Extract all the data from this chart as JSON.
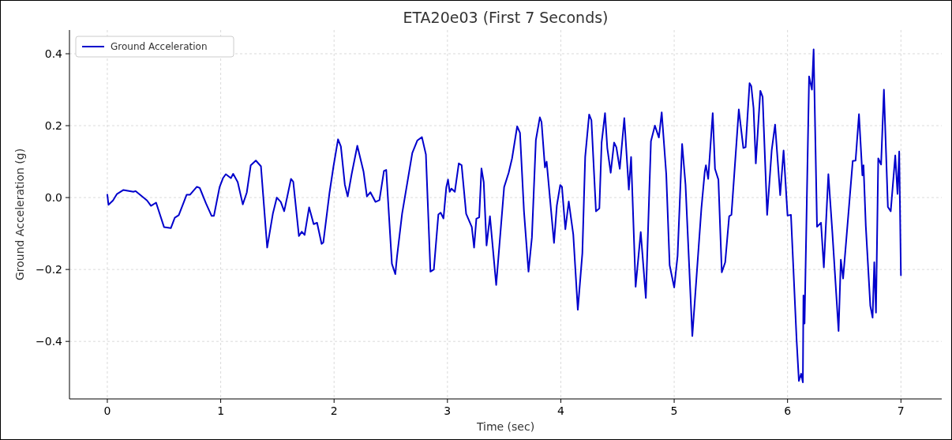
{
  "chart_data": {
    "type": "line",
    "title": "ETA20e03 (First 7 Seconds)",
    "xlabel": "Time (sec)",
    "ylabel": "Ground Acceleration (g)",
    "xlim": [
      -0.334,
      7.36
    ],
    "ylim": [
      -0.56,
      0.466
    ],
    "xticks": [
      0,
      1,
      2,
      3,
      4,
      5,
      6,
      7
    ],
    "yticks": [
      {
        "value": -0.4,
        "label": "−0.4"
      },
      {
        "value": -0.2,
        "label": "−0.2"
      },
      {
        "value": 0,
        "label": "0.0"
      },
      {
        "value": 0.2,
        "label": "0.2"
      },
      {
        "value": 0.4,
        "label": "0.4"
      }
    ],
    "grid": true,
    "legend": "top left",
    "line_style": "solid",
    "series": [
      {
        "name": "Ground Acceleration",
        "color": "#0000cc",
        "x": [
          0,
          0.01,
          0.05,
          0.085,
          0.14,
          0.23,
          0.25,
          0.35,
          0.385,
          0.43,
          0.5,
          0.56,
          0.595,
          0.63,
          0.7,
          0.73,
          0.79,
          0.815,
          0.87,
          0.92,
          0.94,
          0.99,
          1.02,
          1.045,
          1.09,
          1.11,
          1.15,
          1.195,
          1.23,
          1.265,
          1.31,
          1.355,
          1.41,
          1.46,
          1.495,
          1.53,
          1.56,
          1.62,
          1.64,
          1.69,
          1.715,
          1.74,
          1.78,
          1.82,
          1.85,
          1.89,
          1.905,
          1.96,
          1.995,
          2.035,
          2.06,
          2.095,
          2.12,
          2.155,
          2.205,
          2.26,
          2.29,
          2.32,
          2.365,
          2.4,
          2.44,
          2.46,
          2.51,
          2.54,
          2.555,
          2.6,
          2.69,
          2.735,
          2.775,
          2.81,
          2.85,
          2.88,
          2.92,
          2.94,
          2.965,
          2.99,
          3.005,
          3.02,
          3.035,
          3.065,
          3.1,
          3.125,
          3.165,
          3.215,
          3.235,
          3.255,
          3.28,
          3.3,
          3.32,
          3.345,
          3.375,
          3.43,
          3.5,
          3.54,
          3.57,
          3.615,
          3.64,
          3.675,
          3.715,
          3.745,
          3.78,
          3.815,
          3.83,
          3.86,
          3.875,
          3.94,
          3.965,
          3.995,
          4.01,
          4.04,
          4.07,
          4.11,
          4.15,
          4.19,
          4.215,
          4.25,
          4.27,
          4.31,
          4.34,
          4.36,
          4.39,
          4.41,
          4.44,
          4.47,
          4.49,
          4.52,
          4.56,
          4.6,
          4.62,
          4.66,
          4.705,
          4.75,
          4.795,
          4.83,
          4.865,
          4.89,
          4.93,
          4.96,
          5.0,
          5.03,
          5.07,
          5.1,
          5.16,
          5.24,
          5.27,
          5.28,
          5.3,
          5.34,
          5.36,
          5.39,
          5.42,
          5.45,
          5.485,
          5.505,
          5.57,
          5.61,
          5.63,
          5.665,
          5.68,
          5.7,
          5.72,
          5.76,
          5.78,
          5.82,
          5.86,
          5.89,
          5.935,
          5.965,
          6.0,
          6.03,
          6.08,
          6.1,
          6.12,
          6.135,
          6.14,
          6.15,
          6.19,
          6.215,
          6.23,
          6.26,
          6.295,
          6.32,
          6.36,
          6.395,
          6.45,
          6.47,
          6.49,
          6.575,
          6.6,
          6.63,
          6.66,
          6.67,
          6.69,
          6.73,
          6.75,
          6.765,
          6.78,
          6.8,
          6.825,
          6.85,
          6.885,
          6.91,
          6.95,
          6.97,
          6.985,
          7.0
        ],
        "values": [
          0.008,
          -0.02,
          -0.008,
          0.01,
          0.021,
          0.016,
          0.018,
          -0.008,
          -0.023,
          -0.014,
          -0.082,
          -0.085,
          -0.056,
          -0.049,
          0.008,
          0.008,
          0.03,
          0.027,
          -0.016,
          -0.051,
          -0.051,
          0.029,
          0.054,
          0.065,
          0.054,
          0.066,
          0.043,
          -0.019,
          0.014,
          0.09,
          0.103,
          0.087,
          -0.139,
          -0.045,
          0.0,
          -0.012,
          -0.038,
          0.052,
          0.044,
          -0.107,
          -0.095,
          -0.104,
          -0.027,
          -0.074,
          -0.07,
          -0.129,
          -0.125,
          0.014,
          0.087,
          0.162,
          0.142,
          0.036,
          0.003,
          0.065,
          0.144,
          0.072,
          0.003,
          0.015,
          -0.012,
          -0.007,
          0.074,
          0.077,
          -0.184,
          -0.213,
          -0.165,
          -0.045,
          0.124,
          0.159,
          0.168,
          0.12,
          -0.206,
          -0.2,
          -0.047,
          -0.042,
          -0.058,
          0.029,
          0.05,
          0.016,
          0.025,
          0.016,
          0.095,
          0.09,
          -0.045,
          -0.082,
          -0.139,
          -0.059,
          -0.055,
          0.081,
          0.043,
          -0.133,
          -0.052,
          -0.243,
          0.029,
          0.069,
          0.109,
          0.198,
          0.18,
          -0.038,
          -0.206,
          -0.111,
          0.16,
          0.223,
          0.21,
          0.084,
          0.1,
          -0.126,
          -0.022,
          0.035,
          0.03,
          -0.088,
          -0.011,
          -0.103,
          -0.312,
          -0.155,
          0.113,
          0.231,
          0.215,
          -0.038,
          -0.03,
          0.153,
          0.235,
          0.138,
          0.069,
          0.153,
          0.14,
          0.08,
          0.221,
          0.022,
          0.113,
          -0.248,
          -0.096,
          -0.279,
          0.157,
          0.2,
          0.167,
          0.237,
          0.065,
          -0.188,
          -0.25,
          -0.162,
          0.149,
          0.036,
          -0.385,
          -0.03,
          0.073,
          0.09,
          0.052,
          0.235,
          0.08,
          0.05,
          -0.208,
          -0.18,
          -0.052,
          -0.048,
          0.245,
          0.138,
          0.14,
          0.318,
          0.31,
          0.249,
          0.095,
          0.297,
          0.28,
          -0.048,
          0.131,
          0.203,
          0.007,
          0.131,
          -0.05,
          -0.048,
          -0.397,
          -0.51,
          -0.49,
          -0.514,
          -0.272,
          -0.35,
          0.337,
          0.3,
          0.412,
          -0.081,
          -0.07,
          -0.194,
          0.065,
          -0.096,
          -0.371,
          -0.173,
          -0.225,
          0.102,
          0.103,
          0.232,
          0.062,
          0.09,
          -0.078,
          -0.301,
          -0.334,
          -0.18,
          -0.32,
          0.109,
          0.092,
          0.3,
          -0.026,
          -0.038,
          0.117,
          0.01,
          0.128,
          -0.216
        ]
      }
    ]
  }
}
